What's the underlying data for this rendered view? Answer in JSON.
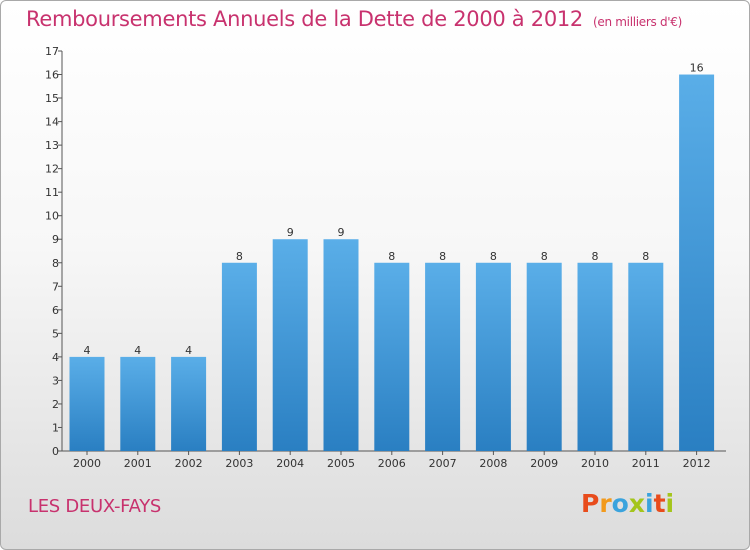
{
  "header": {
    "title": "Remboursements Annuels de la Dette de 2000 à 2012",
    "subtitle": "(en milliers d'€)"
  },
  "footer": {
    "commune": "LES DEUX-FAYS",
    "logo_letters": [
      "P",
      "r",
      "o",
      "x",
      "i",
      "t",
      "i"
    ]
  },
  "colors": {
    "title": "#c8326e",
    "bar_top": "#5aaee8",
    "bar_bottom": "#2a7fc2",
    "logo": [
      "#e84c1c",
      "#f29a1c",
      "#3aa3dd",
      "#a4c51c",
      "#3aa3dd",
      "#e84c1c",
      "#a4c51c"
    ]
  },
  "chart_data": {
    "type": "bar",
    "title": "Remboursements Annuels de la Dette de 2000 à 2012",
    "subtitle": "(en milliers d'€)",
    "xlabel": "",
    "ylabel": "",
    "categories": [
      "2000",
      "2001",
      "2002",
      "2003",
      "2004",
      "2005",
      "2006",
      "2007",
      "2008",
      "2009",
      "2010",
      "2011",
      "2012"
    ],
    "values": [
      4,
      4,
      4,
      8,
      9,
      9,
      8,
      8,
      8,
      8,
      8,
      8,
      16
    ],
    "ylim": [
      0,
      17
    ],
    "yticks": [
      0,
      1,
      2,
      3,
      4,
      5,
      6,
      7,
      8,
      9,
      10,
      11,
      12,
      13,
      14,
      15,
      16,
      17
    ],
    "grid": false,
    "legend": "none"
  }
}
